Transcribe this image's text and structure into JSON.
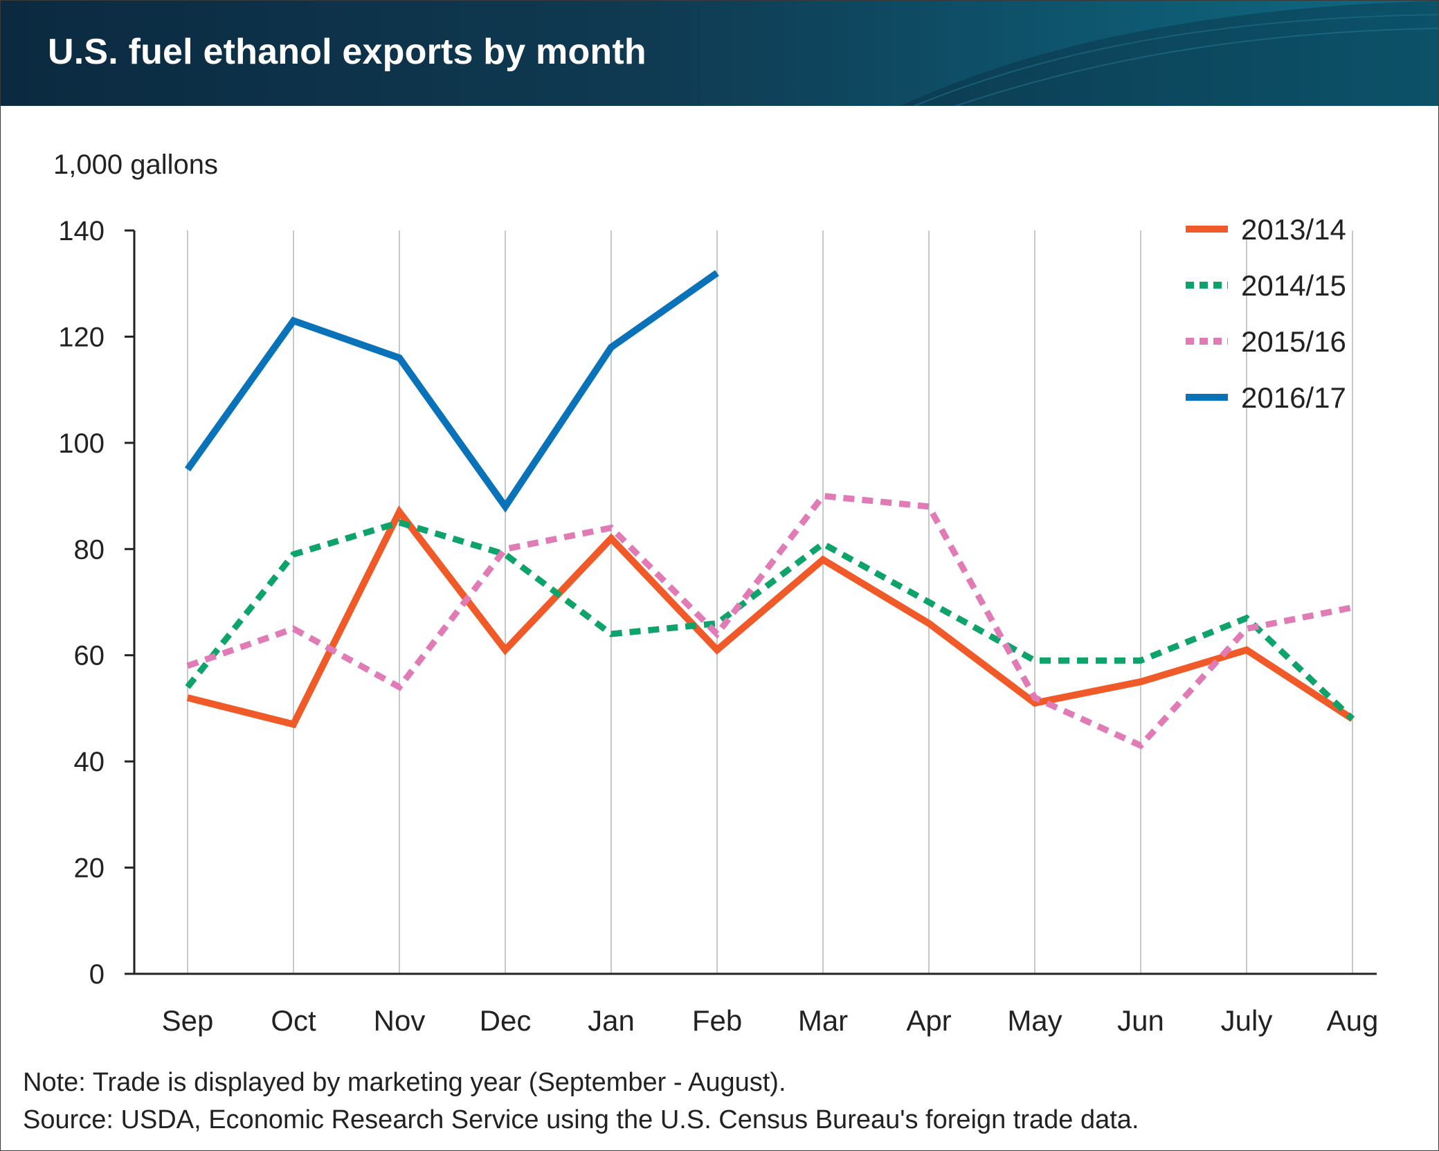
{
  "header": {
    "title": "U.S. fuel ethanol exports by month"
  },
  "footer": {
    "note": "Note: Trade is displayed by marketing year (September - August).",
    "source": "Source: USDA, Economic Research Service using the U.S. Census Bureau's foreign trade data."
  },
  "chart_data": {
    "type": "line",
    "title": "U.S. fuel ethanol exports by month",
    "ylabel": "1,000 gallons",
    "xlabel": "",
    "ylim": [
      0,
      140
    ],
    "yticks": [
      0,
      20,
      40,
      60,
      80,
      100,
      120,
      140
    ],
    "ytick_labels": [
      "0",
      "20",
      "40",
      "60",
      "80",
      "100",
      "120",
      "140"
    ],
    "categories": [
      "Sep",
      "Oct",
      "Nov",
      "Dec",
      "Jan",
      "Feb",
      "Mar",
      "Apr",
      "May",
      "Jun",
      "July",
      "Aug"
    ],
    "grid": "vertical",
    "legend": "top-right",
    "series": [
      {
        "name": "2013/14",
        "color": "#f05a28",
        "style": "solid",
        "values": [
          52,
          47,
          87,
          61,
          82,
          61,
          78,
          66,
          51,
          55,
          61,
          48
        ]
      },
      {
        "name": "2014/15",
        "color": "#0ea36a",
        "style": "dashed",
        "values": [
          54,
          79,
          85,
          79,
          64,
          66,
          81,
          70,
          59,
          59,
          67,
          48
        ]
      },
      {
        "name": "2015/16",
        "color": "#e07bb5",
        "style": "dashed",
        "values": [
          58,
          65,
          54,
          80,
          84,
          64,
          90,
          88,
          52,
          43,
          65,
          69
        ]
      },
      {
        "name": "2016/17",
        "color": "#0a72b8",
        "style": "solid",
        "values": [
          95,
          123,
          116,
          88,
          118,
          132,
          null,
          null,
          null,
          null,
          null,
          null
        ]
      }
    ]
  }
}
